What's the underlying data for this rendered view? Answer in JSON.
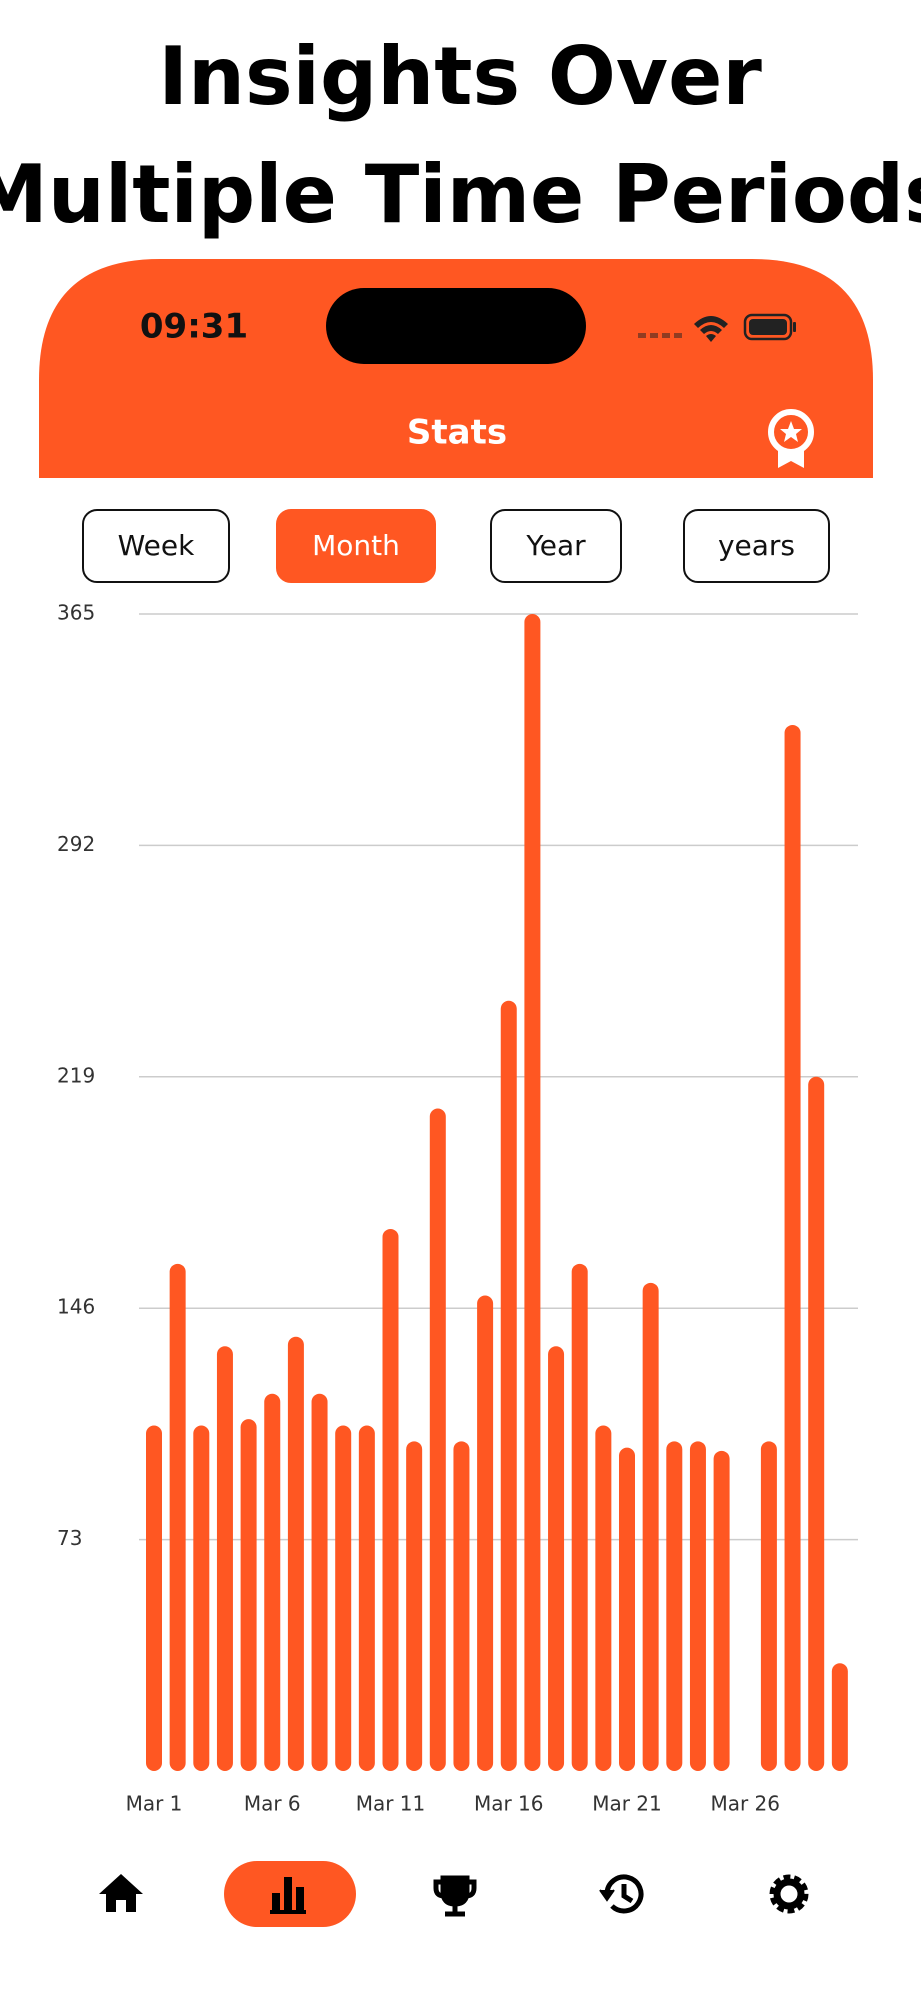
{
  "header": {
    "title_line1": "Insights Over",
    "title_line2": "Multiple Time Periods"
  },
  "status_bar": {
    "time": "09:31"
  },
  "nav": {
    "title": "Stats"
  },
  "tabs": [
    "Week",
    "Month",
    "Year",
    "years"
  ],
  "chart_data": {
    "type": "bar",
    "color": "#ff5722",
    "categories": [
      "Mar 1",
      null,
      null,
      null,
      null,
      "Mar 6",
      null,
      null,
      null,
      null,
      "Mar 11",
      null,
      null,
      null,
      null,
      "Mar 16",
      null,
      null,
      null,
      null,
      "Mar 21",
      null,
      null,
      null,
      null,
      "Mar 26",
      null,
      null,
      null,
      null
    ],
    "values": [
      109,
      160,
      109,
      134,
      111,
      119,
      137,
      119,
      109,
      109,
      171,
      104,
      209,
      104,
      150,
      243,
      365,
      134,
      160,
      109,
      102,
      154,
      104,
      104,
      101,
      0,
      104,
      330,
      219,
      34
    ],
    "ylim": [
      0,
      365
    ],
    "yticks": [
      73,
      146,
      219,
      292,
      365
    ],
    "grid": true
  }
}
